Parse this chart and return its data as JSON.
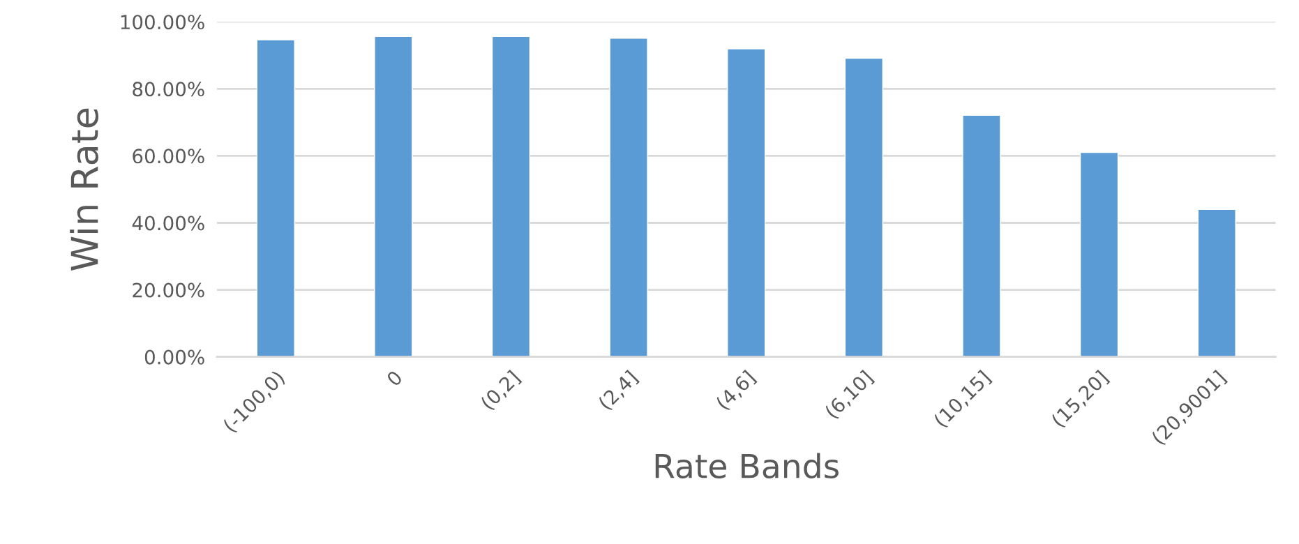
{
  "chart_data": {
    "type": "bar",
    "xlabel": "Rate Bands",
    "ylabel": "Win Rate",
    "categories": [
      "(-100,0)",
      "0",
      "(0,2]",
      "(2,4]",
      "(4,6]",
      "(6,10]",
      "(10,15]",
      "(15,20]",
      "(20,9001]"
    ],
    "values": [
      94.6,
      95.6,
      95.6,
      95.1,
      91.9,
      89.1,
      72.1,
      61.0,
      44.0
    ],
    "color": "#5b9bd5",
    "ylim": [
      0,
      100
    ],
    "yticks": [
      {
        "value": 0,
        "label": "0.00%"
      },
      {
        "value": 20,
        "label": "20.00%"
      },
      {
        "value": 40,
        "label": "40.00%"
      },
      {
        "value": 60,
        "label": "60.00%"
      },
      {
        "value": 80,
        "label": "80.00%"
      },
      {
        "value": 100,
        "label": "100.00%"
      }
    ],
    "grid": "y",
    "legend": false
  }
}
